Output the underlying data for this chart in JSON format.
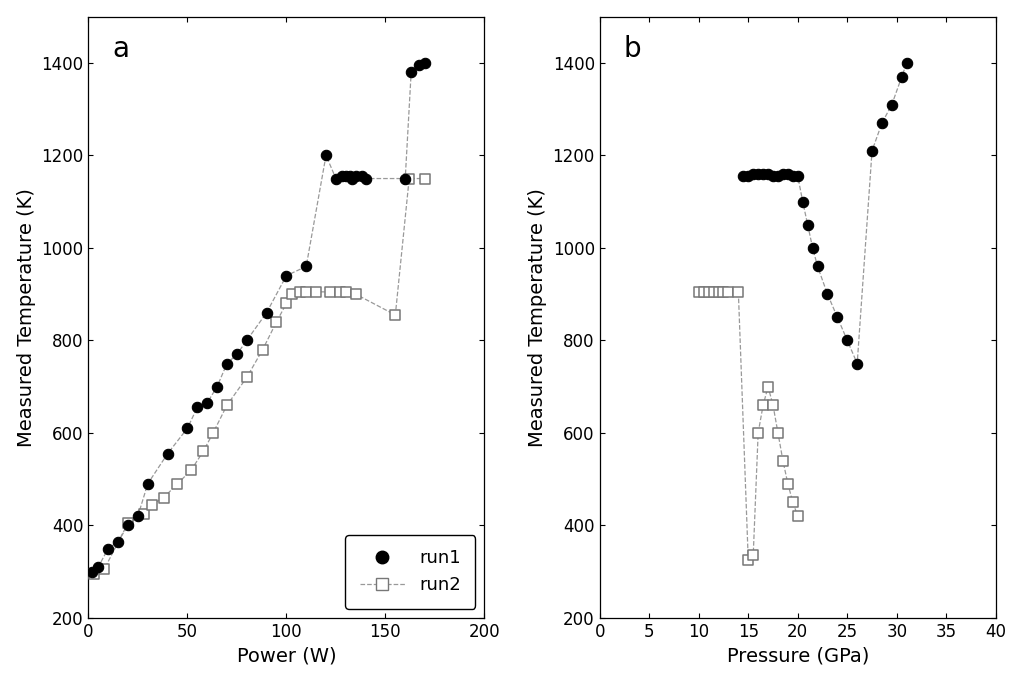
{
  "panel_a": {
    "run1_power": [
      2,
      5,
      10,
      15,
      20,
      25,
      30,
      40,
      50,
      55,
      60,
      65,
      70,
      75,
      80,
      90,
      100,
      110,
      120,
      125,
      128,
      130,
      132,
      133,
      135,
      138,
      140,
      160,
      163,
      167,
      170
    ],
    "run1_temp": [
      300,
      310,
      350,
      365,
      400,
      420,
      490,
      555,
      610,
      655,
      665,
      700,
      750,
      770,
      800,
      860,
      940,
      960,
      1200,
      1150,
      1155,
      1155,
      1155,
      1150,
      1155,
      1155,
      1150,
      1150,
      1380,
      1395,
      1400
    ],
    "run2_power": [
      3,
      8,
      20,
      28,
      32,
      38,
      45,
      52,
      58,
      63,
      70,
      80,
      88,
      95,
      100,
      103,
      107,
      110,
      115,
      122,
      127,
      130,
      135,
      155,
      162,
      170
    ],
    "run2_temp": [
      295,
      305,
      405,
      425,
      445,
      460,
      490,
      520,
      560,
      600,
      660,
      720,
      780,
      840,
      880,
      900,
      905,
      905,
      905,
      905,
      905,
      905,
      900,
      855,
      1150,
      1150
    ],
    "xlabel": "Power (W)",
    "ylabel": "Measured Temperature (K)",
    "xlim": [
      0,
      200
    ],
    "ylim": [
      200,
      1500
    ],
    "xticks": [
      0,
      50,
      100,
      150,
      200
    ],
    "yticks": [
      200,
      400,
      600,
      800,
      1000,
      1200,
      1400
    ],
    "label": "a"
  },
  "panel_b": {
    "run1_pressure": [
      14.5,
      15.0,
      15.5,
      16.0,
      16.5,
      17.0,
      17.5,
      18.0,
      18.5,
      19.0,
      19.5,
      20.0,
      20.5,
      21.0,
      21.5,
      22.0,
      23.0,
      24.0,
      25.0,
      26.0,
      27.5,
      28.5,
      29.5,
      30.5,
      31.0
    ],
    "run1_temp": [
      1155,
      1155,
      1160,
      1160,
      1160,
      1160,
      1155,
      1155,
      1160,
      1160,
      1155,
      1155,
      1100,
      1050,
      1000,
      960,
      900,
      850,
      800,
      750,
      1210,
      1270,
      1310,
      1370,
      1400
    ],
    "run2_pressure": [
      10.0,
      10.5,
      11.0,
      11.5,
      12.0,
      12.5,
      13.0,
      14.0,
      15.0,
      15.5,
      16.0,
      16.5,
      17.0,
      17.5,
      18.0,
      18.5,
      19.0,
      19.5,
      20.0
    ],
    "run2_temp": [
      905,
      905,
      905,
      905,
      905,
      905,
      905,
      905,
      325,
      335,
      600,
      660,
      700,
      660,
      600,
      540,
      490,
      450,
      420
    ],
    "xlabel": "Pressure (GPa)",
    "ylabel": "Measured Temperature (K)",
    "xlim": [
      0,
      40
    ],
    "ylim": [
      200,
      1500
    ],
    "xticks": [
      0,
      5,
      10,
      15,
      20,
      25,
      30,
      35,
      40
    ],
    "yticks": [
      200,
      400,
      600,
      800,
      1000,
      1200,
      1400
    ],
    "label": "b"
  },
  "run1_color": "#000000",
  "run2_line_color": "#999999",
  "run2_edge_color": "#777777",
  "marker_size_run1": 56,
  "marker_size_run2": 52,
  "font_size": 13,
  "label_font_size": 14,
  "tick_label_size": 12
}
